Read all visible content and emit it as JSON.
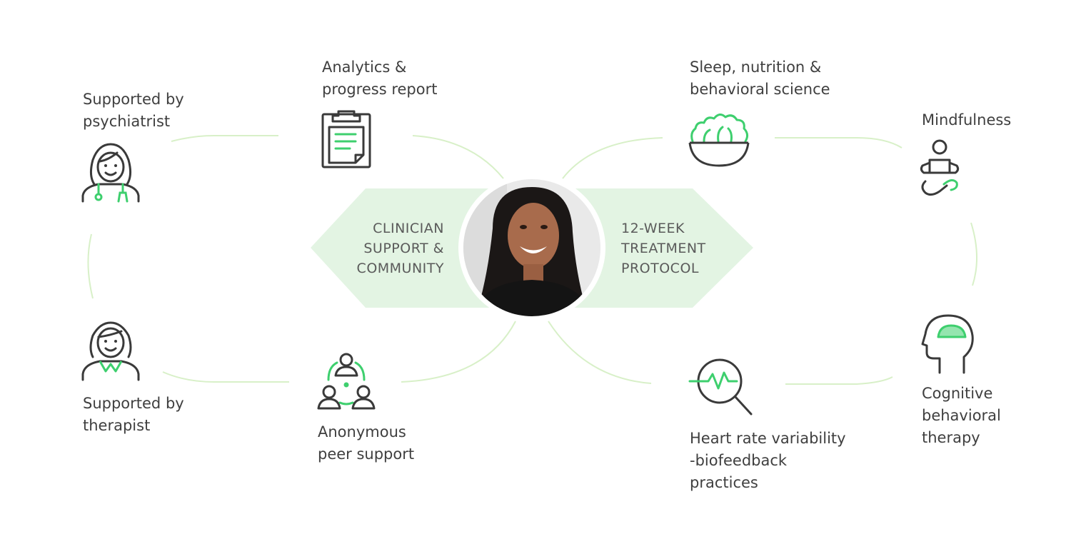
{
  "center": {
    "left_lines": [
      "CLINICIAN",
      "SUPPORT &",
      "COMMUNITY"
    ],
    "right_lines": [
      "12-WEEK",
      "TREATMENT",
      "PROTOCOL"
    ]
  },
  "nodes": {
    "psychiatrist": {
      "lines": [
        "Supported by",
        "psychiatrist"
      ]
    },
    "analytics": {
      "lines": [
        "Analytics &",
        "progress report"
      ]
    },
    "therapist": {
      "lines": [
        "Supported by",
        "therapist"
      ]
    },
    "peer": {
      "lines": [
        "Anonymous",
        "peer support"
      ]
    },
    "sleep": {
      "lines": [
        "Sleep, nutrition &",
        "behavioral science"
      ]
    },
    "mindfulness": {
      "lines": [
        "Mindfulness"
      ]
    },
    "cbt": {
      "lines": [
        "Cognitive",
        "behavioral",
        "therapy"
      ]
    },
    "hrv": {
      "lines": [
        "Heart rate variability",
        "-biofeedback",
        "practices"
      ]
    }
  },
  "colors": {
    "accent": "#3ecf6e",
    "line": "#d6f0c4",
    "panel": "#e3f4e3",
    "icon_stroke": "#3a3a3a",
    "text": "#3f3f3f"
  }
}
